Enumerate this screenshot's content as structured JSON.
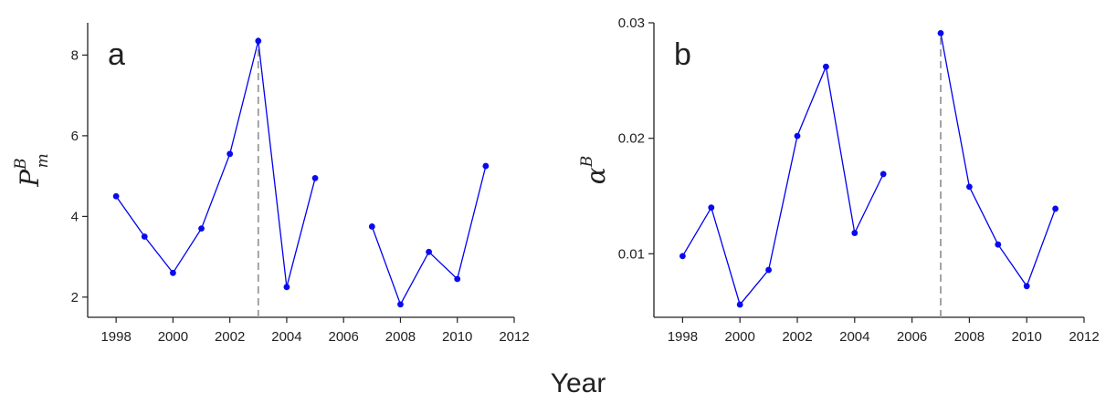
{
  "figure": {
    "xlabel": "Year"
  },
  "chart_data": [
    {
      "type": "line",
      "panel_label": "a",
      "ylabel": {
        "symbol": "P",
        "sup": "B",
        "sub": "m"
      },
      "xlim": [
        1997,
        2012
      ],
      "ylim": [
        1.5,
        8.8
      ],
      "xticks": [
        1998,
        2000,
        2002,
        2004,
        2006,
        2008,
        2010,
        2012
      ],
      "yticks": [
        2,
        4,
        6,
        8
      ],
      "ytick_labels": [
        "2",
        "4",
        "6",
        "8"
      ],
      "vline_x": 2003,
      "series": [
        {
          "color": "#0000ee",
          "segments": [
            {
              "x": [
                1998,
                1999,
                2000,
                2001,
                2002,
                2003,
                2004,
                2005
              ],
              "y": [
                4.5,
                3.5,
                2.6,
                3.7,
                5.55,
                8.35,
                2.25,
                4.95
              ]
            },
            {
              "x": [
                2007,
                2008,
                2009,
                2010,
                2011
              ],
              "y": [
                3.75,
                1.82,
                3.12,
                2.45,
                5.25
              ]
            }
          ]
        }
      ],
      "grid": false
    },
    {
      "type": "line",
      "panel_label": "b",
      "ylabel": {
        "symbol": "α",
        "sup": "B"
      },
      "xlim": [
        1997,
        2012
      ],
      "ylim": [
        0.0045,
        0.03
      ],
      "xticks": [
        1998,
        2000,
        2002,
        2004,
        2006,
        2008,
        2010,
        2012
      ],
      "yticks": [
        0.01,
        0.02,
        0.03
      ],
      "ytick_labels": [
        "0.01",
        "0.02",
        "0.03"
      ],
      "vline_x": 2007,
      "series": [
        {
          "color": "#0000ee",
          "segments": [
            {
              "x": [
                1998,
                1999,
                2000,
                2001,
                2002,
                2003,
                2004,
                2005
              ],
              "y": [
                0.0098,
                0.014,
                0.0056,
                0.0086,
                0.0202,
                0.0262,
                0.0118,
                0.0169
              ]
            },
            {
              "x": [
                2007,
                2008,
                2009,
                2010,
                2011
              ],
              "y": [
                0.0291,
                0.0158,
                0.0108,
                0.0072,
                0.0139
              ]
            }
          ]
        }
      ],
      "grid": false
    }
  ]
}
